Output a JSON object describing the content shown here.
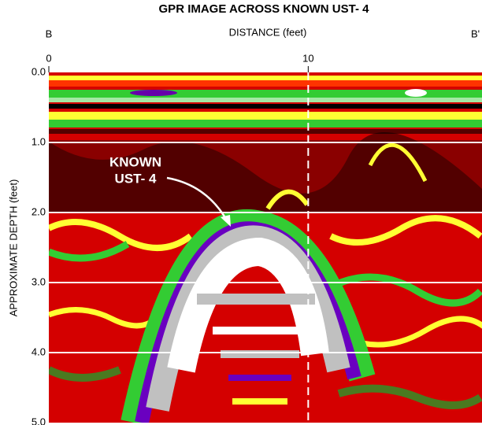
{
  "chart_data": {
    "type": "image",
    "title": "GPR IMAGE ACROSS KNOWN UST- 4",
    "xlabel": "DISTANCE (feet)",
    "ylabel": "APPROXIMATE DEPTH (feet)",
    "endpoints": [
      "B",
      "B'"
    ],
    "annotation": [
      "KNOWN",
      "UST- 4"
    ],
    "xlim": [
      0,
      16.7
    ],
    "xticks": [
      0,
      10
    ],
    "ylim": [
      0,
      5
    ],
    "yticks": [
      {
        "value": 0,
        "label": "0.0"
      },
      {
        "value": 1,
        "label": "1.0"
      },
      {
        "value": 2,
        "label": "2.0"
      },
      {
        "value": 3,
        "label": "3.0"
      },
      {
        "value": 4,
        "label": "4.0"
      },
      {
        "value": 5,
        "label": "5.0"
      }
    ],
    "grid": true
  }
}
